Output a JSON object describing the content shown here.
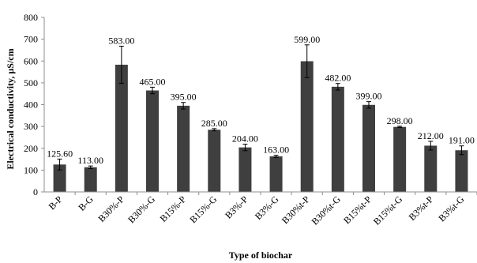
{
  "chart_data": {
    "type": "bar",
    "title": "",
    "xlabel": "Type of  biochar",
    "ylabel": "Electrical conductivity, µS/cm",
    "ylim": [
      0,
      800
    ],
    "yticks": [
      0,
      100,
      200,
      300,
      400,
      500,
      600,
      700,
      800
    ],
    "ytick_labels": [
      "0",
      "100",
      "200",
      "300",
      "400",
      "500",
      "600",
      "700",
      "800"
    ],
    "grid": false,
    "legend": "none",
    "categories": [
      "B-P",
      "B-G",
      "B30%-P",
      "B30%-G",
      "B15%-P",
      "B15%-G",
      "B3%-P",
      "B3%-G",
      "B30%t-P",
      "B30%t-G",
      "B15%t-P",
      "B15%t-G",
      "B3%t-P",
      "B3%t-G"
    ],
    "values": [
      125.6,
      113,
      583,
      465,
      395,
      285,
      204,
      163,
      599,
      482,
      399,
      298,
      212,
      191
    ],
    "value_labels": [
      "125.60",
      "113.00",
      "583.00",
      "465.00",
      "395.00",
      "285.00",
      "204.00",
      "163.00",
      "599.00",
      "482.00",
      "399.00",
      "298.00",
      "212.00",
      "191.00"
    ],
    "errors": [
      25,
      6,
      85,
      15,
      15,
      5,
      15,
      5,
      75,
      15,
      15,
      3,
      20,
      20
    ],
    "bar_color": "#3f3f3f",
    "axis_color": "#8f8f8f"
  }
}
